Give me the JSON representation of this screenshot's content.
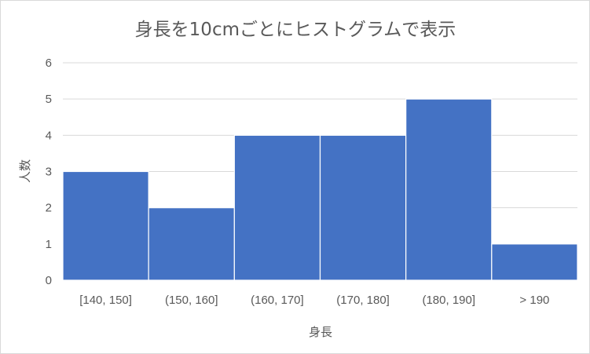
{
  "chart_data": {
    "type": "bar",
    "title": "身長を10cmごとにヒストグラムで表示",
    "xlabel": "身長",
    "ylabel": "人数",
    "categories": [
      "[140, 150]",
      "(150, 160]",
      "(160, 170]",
      "(170, 180]",
      "(180, 190]",
      "> 190"
    ],
    "values": [
      3,
      2,
      4,
      4,
      5,
      1
    ],
    "ylim": [
      0,
      6
    ],
    "yticks": [
      "0",
      "1",
      "2",
      "3",
      "4",
      "5",
      "6"
    ],
    "grid": true,
    "legend": "none",
    "bar_color": "#4472c4",
    "grid_color": "#d9d9d9"
  }
}
